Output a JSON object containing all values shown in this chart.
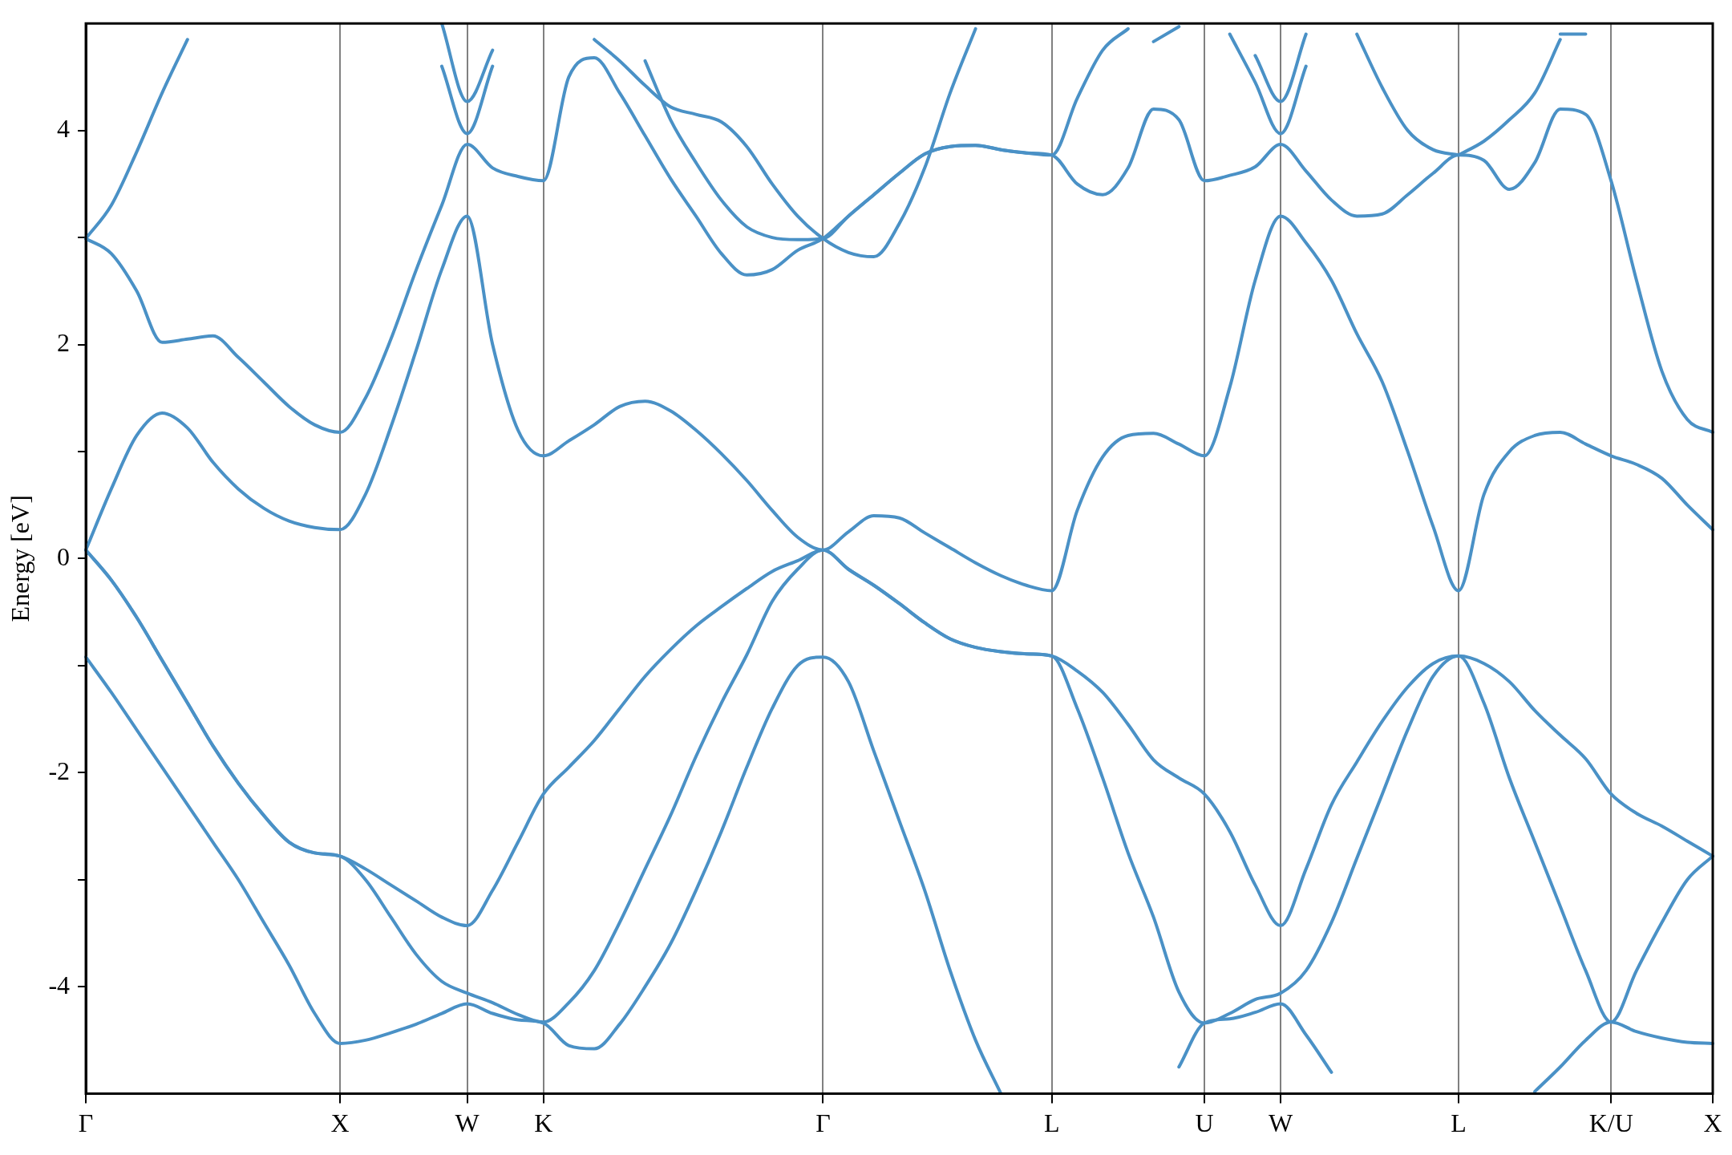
{
  "chart_data": {
    "type": "line",
    "ylabel": "Energy [eV]",
    "ylim": [
      -5,
      5
    ],
    "categories": [
      "Γ",
      null,
      null,
      null,
      null,
      null,
      null,
      null,
      null,
      null,
      "X",
      null,
      null,
      null,
      null,
      "W",
      null,
      null,
      "K",
      null,
      null,
      null,
      null,
      null,
      null,
      null,
      null,
      null,
      null,
      "Γ",
      null,
      null,
      null,
      null,
      null,
      null,
      null,
      null,
      "L",
      null,
      null,
      null,
      null,
      null,
      "U",
      null,
      null,
      "W",
      null,
      null,
      null,
      null,
      null,
      null,
      "L",
      null,
      null,
      null,
      null,
      null,
      "K/U",
      null,
      null,
      null,
      "X"
    ],
    "yticks": [
      -4,
      {
        "value": -3,
        "label": null
      },
      -2,
      {
        "value": -1,
        "label": null
      },
      0,
      {
        "value": 1,
        "label": null
      },
      2,
      {
        "value": 3,
        "label": null
      },
      4
    ],
    "grid": "x",
    "legend": false,
    "marker": "none",
    "line_style": "solid",
    "series": [
      {
        "color": "#4a91c6",
        "values": [
          -0.92,
          -1.25,
          -1.6,
          -1.95,
          -2.3,
          -2.65,
          -3.0,
          -3.4,
          -3.8,
          -4.25,
          -4.53,
          -4.5,
          -4.43,
          -4.35,
          -4.25,
          -4.16,
          -4.25,
          -4.31,
          -4.34,
          -4.55,
          -4.58,
          -4.35,
          -4.0,
          -3.6,
          -3.1,
          -2.55,
          -1.95,
          -1.4,
          -1.0,
          -0.92,
          -1.15,
          -1.8,
          -2.45,
          -3.1,
          -3.85,
          -4.5,
          -5,
          null,
          null,
          null,
          null,
          null,
          null,
          -4.75,
          -4.34,
          -4.3,
          -4.24,
          -4.16,
          -4.45,
          -4.8,
          null,
          null,
          null,
          null,
          null,
          null,
          null,
          -4.98,
          -4.75,
          -4.5,
          -4.33,
          -4.42,
          -4.48,
          -4.52,
          -4.53
        ]
      },
      {
        "color": "#4a91c6",
        "values": [
          0.08,
          -0.2,
          -0.55,
          -0.95,
          -1.35,
          -1.75,
          -2.1,
          -2.4,
          -2.65,
          -2.75,
          -2.78,
          -3.0,
          -3.35,
          -3.7,
          -3.95,
          -4.06,
          -4.15,
          -4.26,
          -4.33,
          -4.15,
          -3.85,
          -3.4,
          -2.9,
          -2.4,
          -1.85,
          -1.35,
          -0.9,
          -0.4,
          -0.1,
          0.08,
          -0.1,
          -0.25,
          -0.42,
          -0.6,
          -0.75,
          -0.83,
          -0.87,
          -0.89,
          -0.91,
          -1.4,
          -2.05,
          -2.75,
          -3.35,
          -4.05,
          -4.34,
          -4.25,
          -4.12,
          -4.06,
          -3.85,
          -3.4,
          -2.8,
          -2.2,
          -1.6,
          -1.1,
          -0.91,
          -1.35,
          -2.05,
          -2.65,
          -3.25,
          -3.85,
          -4.33,
          -3.85,
          -3.4,
          -3.0,
          -2.78
        ]
      },
      {
        "color": "#4a91c6",
        "values": [
          0.08,
          -0.2,
          -0.55,
          -0.95,
          -1.35,
          -1.75,
          -2.1,
          -2.4,
          -2.65,
          -2.75,
          -2.78,
          -2.9,
          -3.05,
          -3.2,
          -3.35,
          -3.43,
          -3.1,
          -2.65,
          -2.2,
          -1.95,
          -1.7,
          -1.4,
          -1.1,
          -0.85,
          -0.63,
          -0.45,
          -0.28,
          -0.12,
          -0.02,
          0.08,
          -0.1,
          -0.25,
          -0.42,
          -0.6,
          -0.75,
          -0.83,
          -0.87,
          -0.89,
          -0.91,
          -1.05,
          -1.25,
          -1.55,
          -1.88,
          -2.05,
          -2.2,
          -2.55,
          -3.05,
          -3.43,
          -2.9,
          -2.3,
          -1.9,
          -1.52,
          -1.2,
          -0.98,
          -0.91,
          -0.98,
          -1.15,
          -1.42,
          -1.65,
          -1.87,
          -2.2,
          -2.38,
          -2.5,
          -2.64,
          -2.78
        ]
      },
      {
        "color": "#4a91c6",
        "values": [
          0.08,
          0.65,
          1.15,
          1.36,
          1.22,
          0.9,
          0.65,
          0.47,
          0.35,
          0.29,
          0.27,
          0.6,
          1.23,
          1.95,
          2.7,
          3.2,
          2.0,
          1.2,
          0.96,
          1.1,
          1.25,
          1.42,
          1.47,
          1.38,
          1.2,
          0.98,
          0.73,
          0.45,
          0.2,
          0.08,
          0.25,
          0.4,
          0.38,
          0.24,
          0.1,
          -0.04,
          -0.16,
          -0.25,
          -0.3,
          0.45,
          0.95,
          1.15,
          1.17,
          1.07,
          0.96,
          1.6,
          2.6,
          3.2,
          2.95,
          2.6,
          2.1,
          1.65,
          1.0,
          0.3,
          -0.3,
          0.6,
          1.0,
          1.15,
          1.18,
          1.07,
          0.96,
          0.88,
          0.75,
          0.5,
          0.27
        ]
      },
      {
        "color": "#4a91c6",
        "values": [
          2.99,
          2.85,
          2.5,
          2.02,
          2.05,
          2.08,
          1.88,
          1.65,
          1.42,
          1.25,
          1.18,
          1.5,
          2.05,
          2.7,
          3.3,
          3.87,
          3.65,
          3.57,
          3.53,
          4.5,
          4.68,
          4.35,
          3.95,
          3.55,
          3.2,
          2.85,
          2.65,
          2.7,
          2.88,
          2.99,
          3.2,
          3.4,
          3.6,
          3.78,
          3.85,
          3.86,
          3.82,
          3.79,
          3.77,
          3.5,
          3.4,
          3.65,
          4.2,
          4.1,
          3.53,
          3.58,
          3.66,
          3.87,
          3.62,
          3.35,
          3.2,
          3.22,
          3.4,
          3.6,
          3.77,
          3.72,
          3.45,
          3.7,
          4.2,
          4.15,
          3.53,
          2.6,
          1.75,
          1.3,
          1.18
        ]
      },
      {
        "color": "#4a91c6",
        "values": [
          2.99,
          3.3,
          3.8,
          4.35,
          4.85,
          null,
          null,
          null,
          null,
          null,
          null,
          null,
          null,
          null,
          5,
          4.27,
          4.75,
          null,
          null,
          null,
          4.85,
          4.65,
          4.42,
          4.22,
          4.15,
          4.08,
          3.85,
          3.5,
          3.2,
          2.99,
          2.86,
          2.82,
          3.13,
          3.65,
          4.35,
          4.95,
          null,
          null,
          null,
          null,
          null,
          null,
          null,
          null,
          null,
          null,
          4.7,
          4.27,
          4.9,
          null,
          4.9,
          4.4,
          4.0,
          3.82,
          3.77,
          null,
          null,
          null,
          null,
          null,
          null,
          null,
          null,
          null,
          null
        ]
      },
      {
        "color": "#4a91c6",
        "values": [
          null,
          null,
          null,
          null,
          null,
          null,
          null,
          null,
          null,
          null,
          null,
          null,
          null,
          null,
          4.6,
          3.97,
          4.6,
          null,
          null,
          null,
          null,
          null,
          4.65,
          4.1,
          3.7,
          3.35,
          3.1,
          3.0,
          2.98,
          2.99,
          3.2,
          3.4,
          3.6,
          3.78,
          3.85,
          3.86,
          3.82,
          3.79,
          3.77,
          4.3,
          4.75,
          4.95,
          null,
          null,
          null,
          4.9,
          4.45,
          3.97,
          4.6,
          null,
          null,
          null,
          null,
          null,
          3.77,
          3.9,
          4.1,
          4.35,
          4.85,
          null,
          null,
          null,
          null,
          null,
          null
        ]
      },
      {
        "color": "#4a91c6",
        "values": [
          null,
          null,
          null,
          null,
          null,
          null,
          null,
          null,
          null,
          null,
          null,
          null,
          null,
          null,
          null,
          null,
          null,
          null,
          null,
          null,
          null,
          null,
          null,
          null,
          null,
          null,
          null,
          null,
          null,
          null,
          null,
          null,
          null,
          null,
          null,
          null,
          null,
          null,
          null,
          null,
          null,
          null,
          4.83,
          4.97,
          null,
          null,
          null,
          null,
          null,
          null,
          null,
          null,
          null,
          null,
          null,
          null,
          null,
          null,
          4.9,
          4.9,
          null,
          null,
          null,
          null,
          null
        ]
      }
    ]
  }
}
